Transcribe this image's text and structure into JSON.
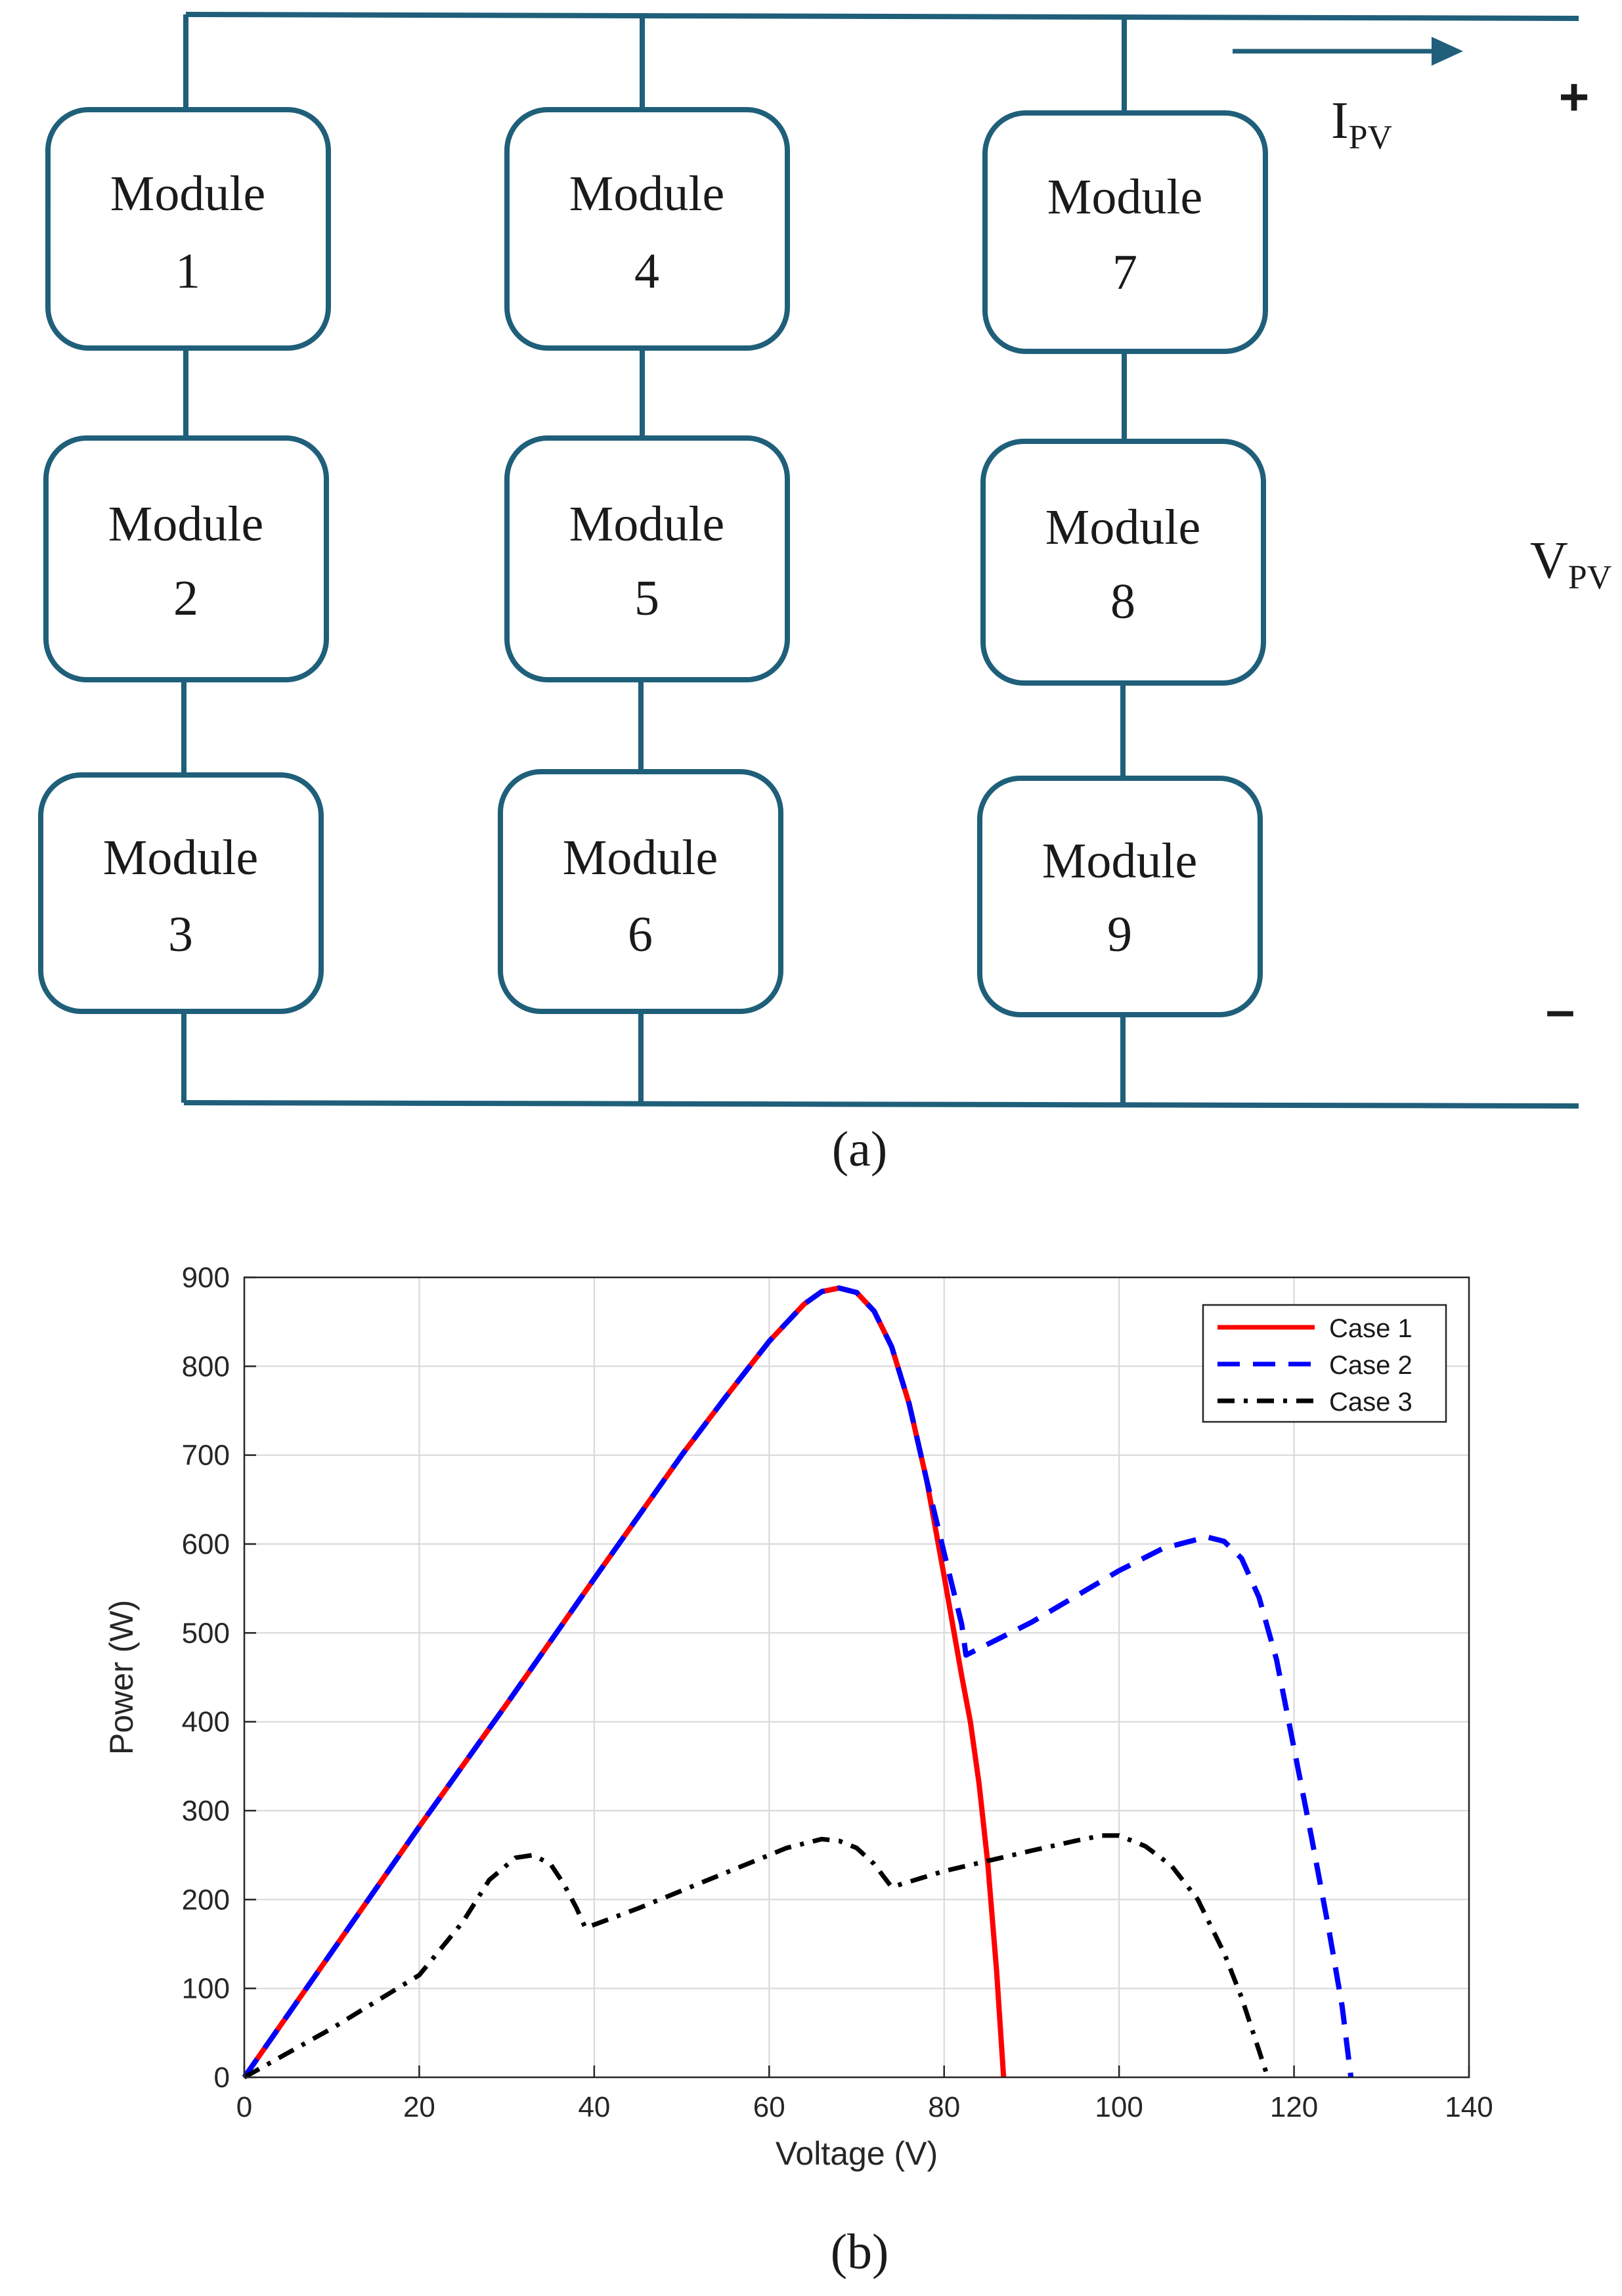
{
  "diagram": {
    "caption": "(a)",
    "current_label": "I",
    "current_sub": "PV",
    "voltage_label": "V",
    "voltage_sub": "PV",
    "plus": "+",
    "minus": "–",
    "modules": [
      {
        "line1": "Module",
        "line2": "1"
      },
      {
        "line1": "Module",
        "line2": "2"
      },
      {
        "line1": "Module",
        "line2": "3"
      },
      {
        "line1": "Module",
        "line2": "4"
      },
      {
        "line1": "Module",
        "line2": "5"
      },
      {
        "line1": "Module",
        "line2": "6"
      },
      {
        "line1": "Module",
        "line2": "7"
      },
      {
        "line1": "Module",
        "line2": "8"
      },
      {
        "line1": "Module",
        "line2": "9"
      }
    ],
    "colors": {
      "wire": "#1f5f7a"
    }
  },
  "chart_caption": "(b)",
  "chart_data": {
    "type": "line",
    "title": "",
    "xlabel": "Voltage (V)",
    "ylabel": "Power (W)",
    "xlim": [
      0,
      140
    ],
    "ylim": [
      0,
      900
    ],
    "xticks": [
      "0",
      "20",
      "40",
      "60",
      "80",
      "100",
      "120",
      "140"
    ],
    "yticks": [
      "0",
      "100",
      "200",
      "300",
      "400",
      "500",
      "600",
      "700",
      "800",
      "900"
    ],
    "grid": true,
    "legend_position": "top-right",
    "series": [
      {
        "name": "Case 1",
        "color": "#ff0000",
        "style": "solid",
        "points": [
          [
            0,
            0
          ],
          [
            10,
            141
          ],
          [
            20,
            282
          ],
          [
            30,
            420
          ],
          [
            40,
            561
          ],
          [
            50,
            700
          ],
          [
            55,
            765
          ],
          [
            60,
            828
          ],
          [
            64,
            870
          ],
          [
            66,
            884
          ],
          [
            68,
            888
          ],
          [
            70,
            883
          ],
          [
            72,
            862
          ],
          [
            74,
            822
          ],
          [
            76,
            758
          ],
          [
            78,
            672
          ],
          [
            80,
            564
          ],
          [
            82,
            452
          ],
          [
            83,
            400
          ],
          [
            84,
            330
          ],
          [
            85,
            240
          ],
          [
            86,
            120
          ],
          [
            86.8,
            0
          ]
        ]
      },
      {
        "name": "Case 2",
        "color": "#0000ff",
        "style": "dashed",
        "points": [
          [
            0,
            0
          ],
          [
            10,
            141
          ],
          [
            20,
            282
          ],
          [
            30,
            420
          ],
          [
            40,
            561
          ],
          [
            50,
            700
          ],
          [
            55,
            765
          ],
          [
            60,
            828
          ],
          [
            64,
            870
          ],
          [
            66,
            884
          ],
          [
            68,
            888
          ],
          [
            70,
            883
          ],
          [
            72,
            862
          ],
          [
            74,
            822
          ],
          [
            76,
            758
          ],
          [
            78,
            672
          ],
          [
            80,
            590
          ],
          [
            82,
            510
          ],
          [
            82.5,
            475
          ],
          [
            90,
            512
          ],
          [
            100,
            570
          ],
          [
            105,
            595
          ],
          [
            110,
            608
          ],
          [
            112,
            603
          ],
          [
            114,
            584
          ],
          [
            116,
            540
          ],
          [
            118,
            470
          ],
          [
            120,
            370
          ],
          [
            122,
            270
          ],
          [
            124,
            165
          ],
          [
            125.5,
            80
          ],
          [
            126.5,
            0
          ]
        ]
      },
      {
        "name": "Case 3",
        "color": "#000000",
        "style": "dashdot",
        "points": [
          [
            0,
            0
          ],
          [
            10,
            55
          ],
          [
            20,
            115
          ],
          [
            25,
            175
          ],
          [
            28,
            222
          ],
          [
            31,
            247
          ],
          [
            33,
            250
          ],
          [
            35,
            240
          ],
          [
            36.5,
            218
          ],
          [
            38,
            190
          ],
          [
            39,
            168
          ],
          [
            45,
            190
          ],
          [
            55,
            230
          ],
          [
            62,
            258
          ],
          [
            66,
            268
          ],
          [
            68,
            266
          ],
          [
            70,
            258
          ],
          [
            72,
            240
          ],
          [
            74,
            214
          ],
          [
            80,
            232
          ],
          [
            90,
            255
          ],
          [
            95,
            266
          ],
          [
            98,
            272
          ],
          [
            100,
            272
          ],
          [
            103,
            260
          ],
          [
            106,
            238
          ],
          [
            109,
            200
          ],
          [
            112,
            140
          ],
          [
            114,
            90
          ],
          [
            116,
            30
          ],
          [
            117,
            0
          ]
        ]
      }
    ]
  }
}
